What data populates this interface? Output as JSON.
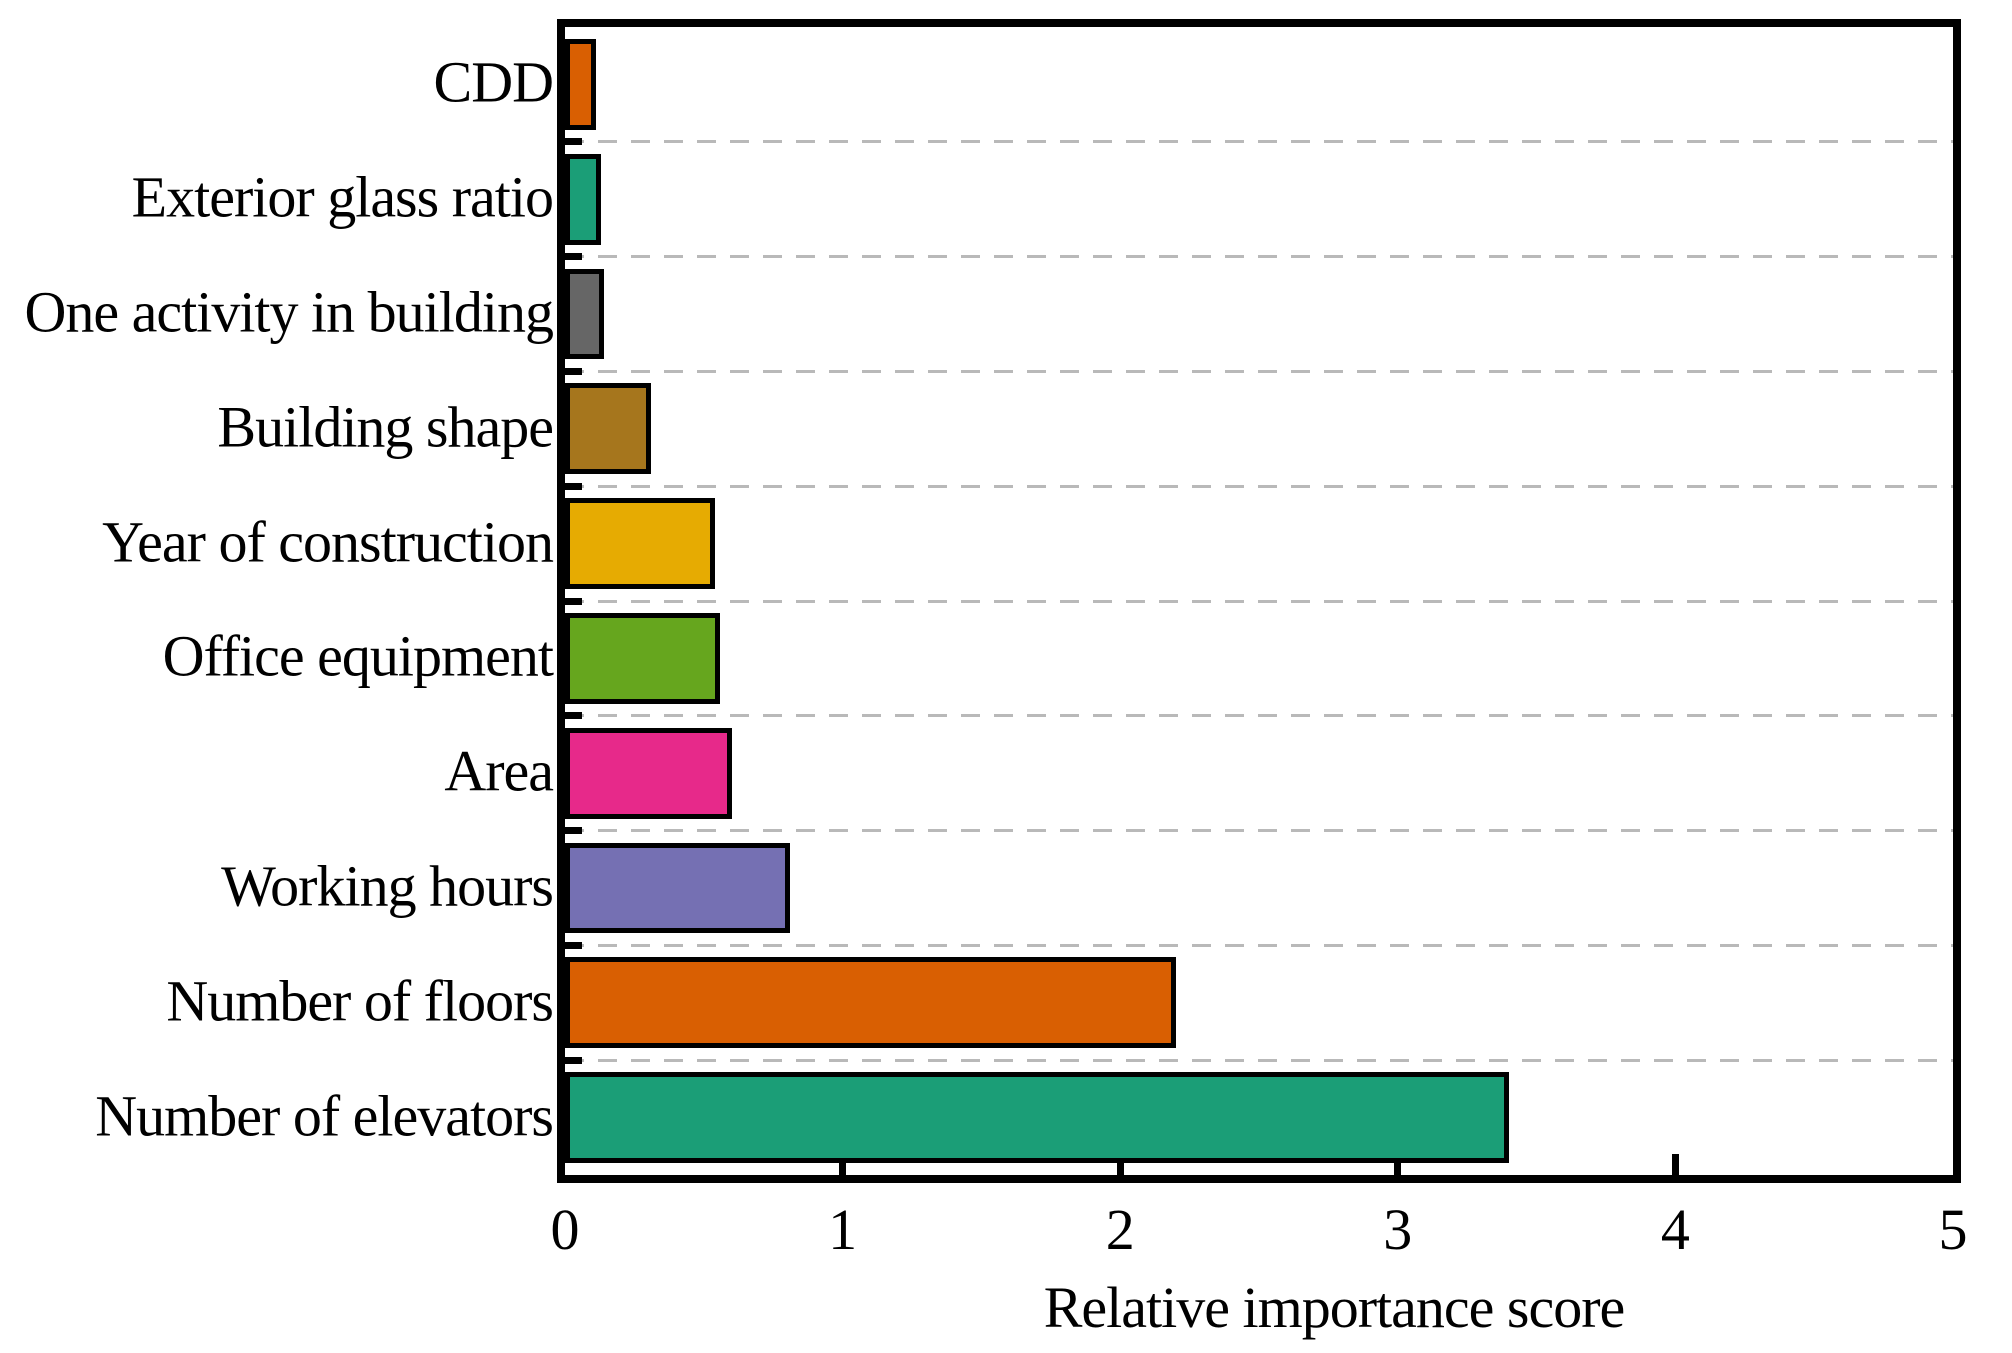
{
  "chart_data": {
    "type": "bar",
    "orientation": "horizontal",
    "title": "",
    "xlabel": "Relative importance score",
    "ylabel": "",
    "xlim": [
      0,
      5
    ],
    "x_ticks": [
      0,
      1,
      2,
      3,
      4,
      5
    ],
    "grid": "dashed horizontal lines between category bands",
    "legend": "none",
    "bar_edge_color": "#000000",
    "gridline_color": "#b9b9b9",
    "background_color": "#ffffff",
    "categories_top_to_bottom": [
      "CDD",
      "Exterior glass ratio",
      "One activity in building",
      "Building shape",
      "Year of construction",
      "Office equipment",
      "Area",
      "Working hours",
      "Number of floors",
      "Number of elevators"
    ],
    "values": [
      0.11,
      0.13,
      0.14,
      0.31,
      0.54,
      0.56,
      0.6,
      0.81,
      2.2,
      3.4
    ],
    "bar_colors": [
      "#D95F02",
      "#1B9E77",
      "#666666",
      "#A6761D",
      "#E6AB02",
      "#66A61E",
      "#E7298A",
      "#7570B3",
      "#D95F02",
      "#1B9E77"
    ]
  }
}
